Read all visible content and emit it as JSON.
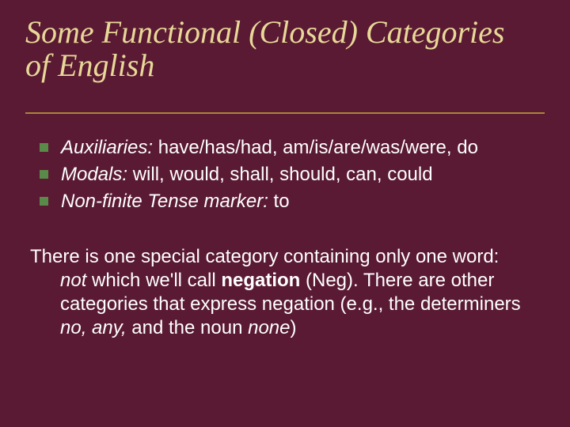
{
  "colors": {
    "slide_background": "#5a1a33",
    "page_background": "#000000",
    "title_color": "#e8d898",
    "underline_color": "#a88838",
    "bullet_color": "#5a8a4a",
    "body_text_color": "#ffffff"
  },
  "typography": {
    "title_font": "Times New Roman",
    "title_style": "italic",
    "title_fontsize_pt": 30,
    "body_font": "Arial",
    "body_fontsize_pt": 18
  },
  "title_line1": "Some Functional (Closed) Categories",
  "title_line2": "of English",
  "bullets": [
    {
      "label": "Auxiliaries:",
      "rest": " have/has/had, am/is/are/was/were, do"
    },
    {
      "label": "Modals:",
      "rest": " will, would, shall, should, can, could"
    },
    {
      "label": "Non-finite Tense marker:",
      "rest": " to"
    }
  ],
  "paragraph": {
    "p1a": "There is one special category containing only one word: ",
    "p1_not": "not",
    "p1b": " which we'll call ",
    "p1_negation": "negation",
    "p1c": " (Neg). There are other categories that express negation (e.g., the determiners ",
    "p1_no": "no, any,",
    "p1d": " and the noun ",
    "p1_none": "none",
    "p1e": ")"
  }
}
